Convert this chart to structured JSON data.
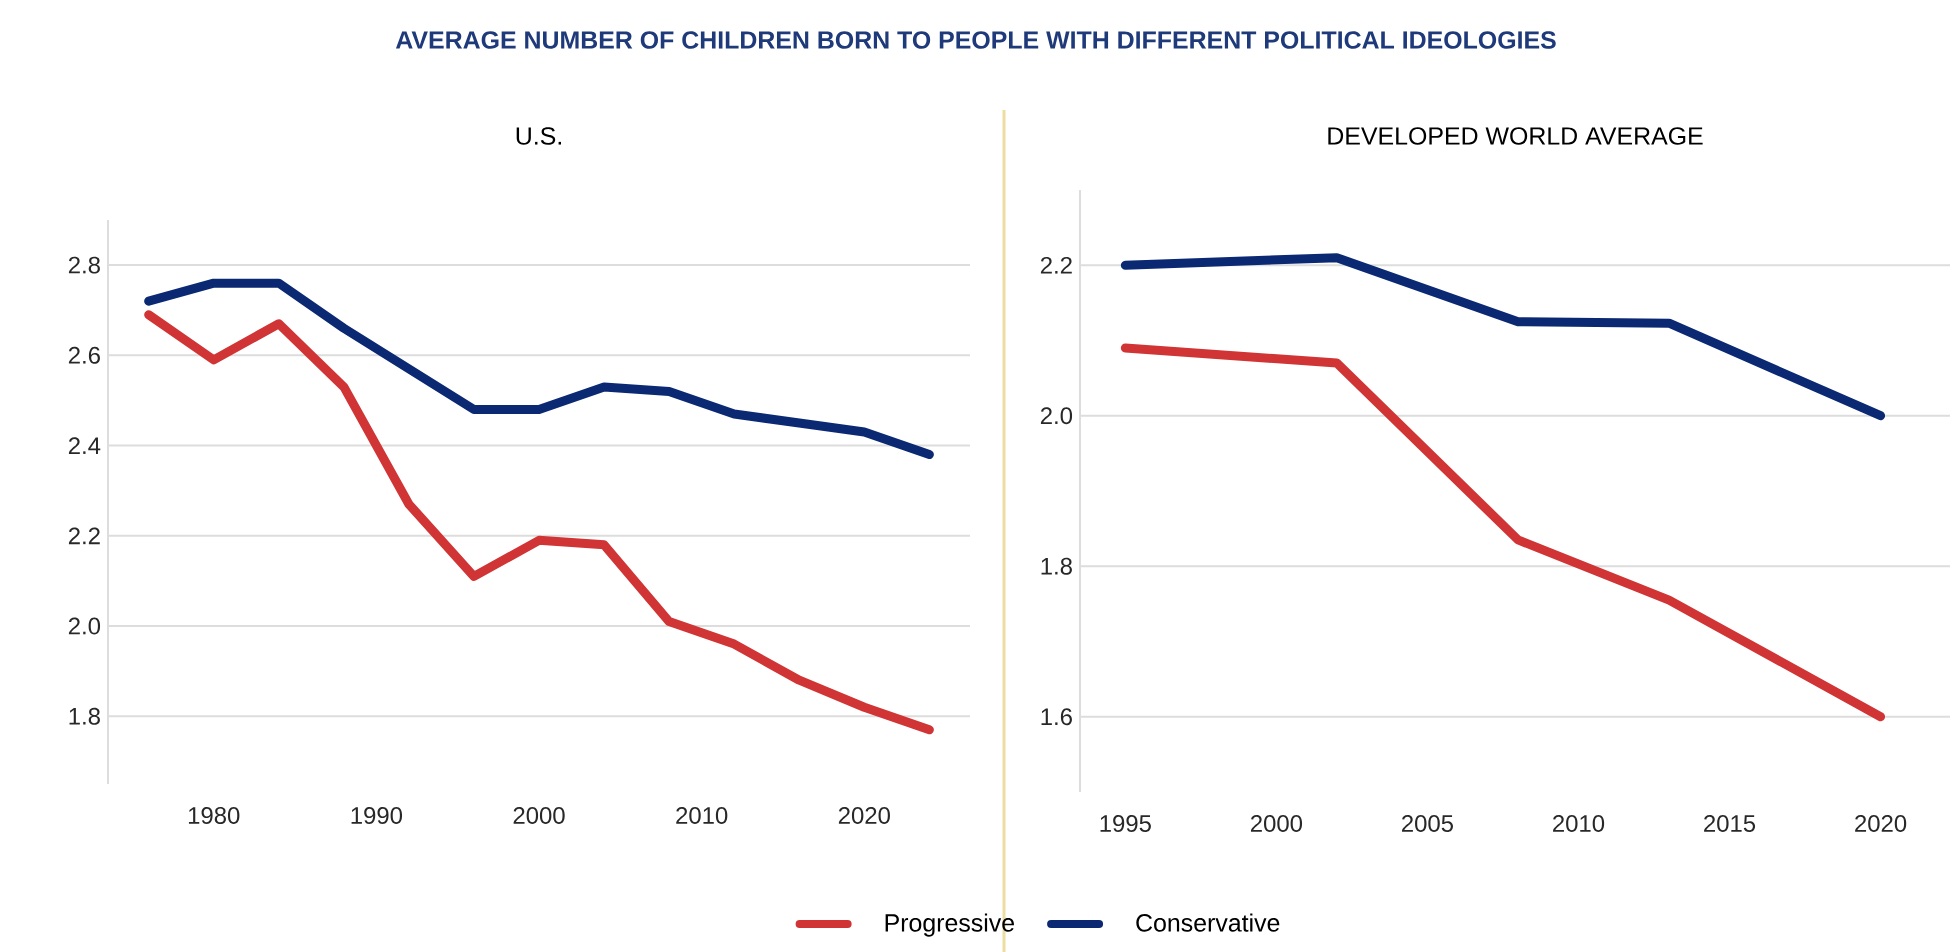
{
  "chart_data": [
    {
      "type": "line",
      "title": "AVERAGE NUMBER OF CHILDREN BORN TO PEOPLE WITH DIFFERENT POLITICAL IDEOLOGIES",
      "subtitle": "U.S.",
      "x": [
        1976,
        1980,
        1984,
        1988,
        1992,
        1996,
        2000,
        2004,
        2008,
        2012,
        2016,
        2020,
        2024
      ],
      "series": [
        {
          "name": "Progressive",
          "color": "#d03434",
          "values": [
            2.69,
            2.59,
            2.67,
            2.53,
            2.27,
            2.11,
            2.19,
            2.18,
            2.01,
            1.96,
            1.88,
            1.82,
            1.77
          ]
        },
        {
          "name": "Conservative",
          "color": "#0b2872",
          "values": [
            2.72,
            2.76,
            2.76,
            2.66,
            2.57,
            2.48,
            2.48,
            2.53,
            2.52,
            2.47,
            2.45,
            2.43,
            2.38
          ]
        }
      ],
      "xlim": [
        1973.5,
        2026.5
      ],
      "ylim": [
        1.65,
        2.9
      ],
      "xticks": [
        1980,
        1990,
        2000,
        2010,
        2020
      ],
      "yticks": [
        1.8,
        {
          "value": 2,
          "label": "2.0"
        },
        2.2,
        2.4,
        2.6,
        2.8
      ],
      "grid": "y",
      "legend": "bottom",
      "marker": "none",
      "line_style": "solid"
    },
    {
      "type": "line",
      "subtitle": "DEVELOPED WORLD AVERAGE",
      "x": [
        1995,
        2002,
        2008,
        2013,
        2020
      ],
      "series": [
        {
          "color": "#d03434",
          "values": [
            2.09,
            2.07,
            1.835,
            1.755,
            1.6
          ]
        },
        {
          "color": "#0b2872",
          "values": [
            2.2,
            2.21,
            2.125,
            2.123,
            2.0
          ]
        }
      ],
      "xlim": [
        1993.5,
        2022.3
      ],
      "ylim": [
        1.5,
        2.3
      ],
      "xticks": [
        1995,
        2000,
        2005,
        2010,
        2015,
        2020
      ],
      "yticks": [
        1.6,
        1.8,
        {
          "value": 2,
          "label": "2.0"
        },
        2.2
      ],
      "grid": "y",
      "marker": "none",
      "line_style": "solid"
    }
  ]
}
